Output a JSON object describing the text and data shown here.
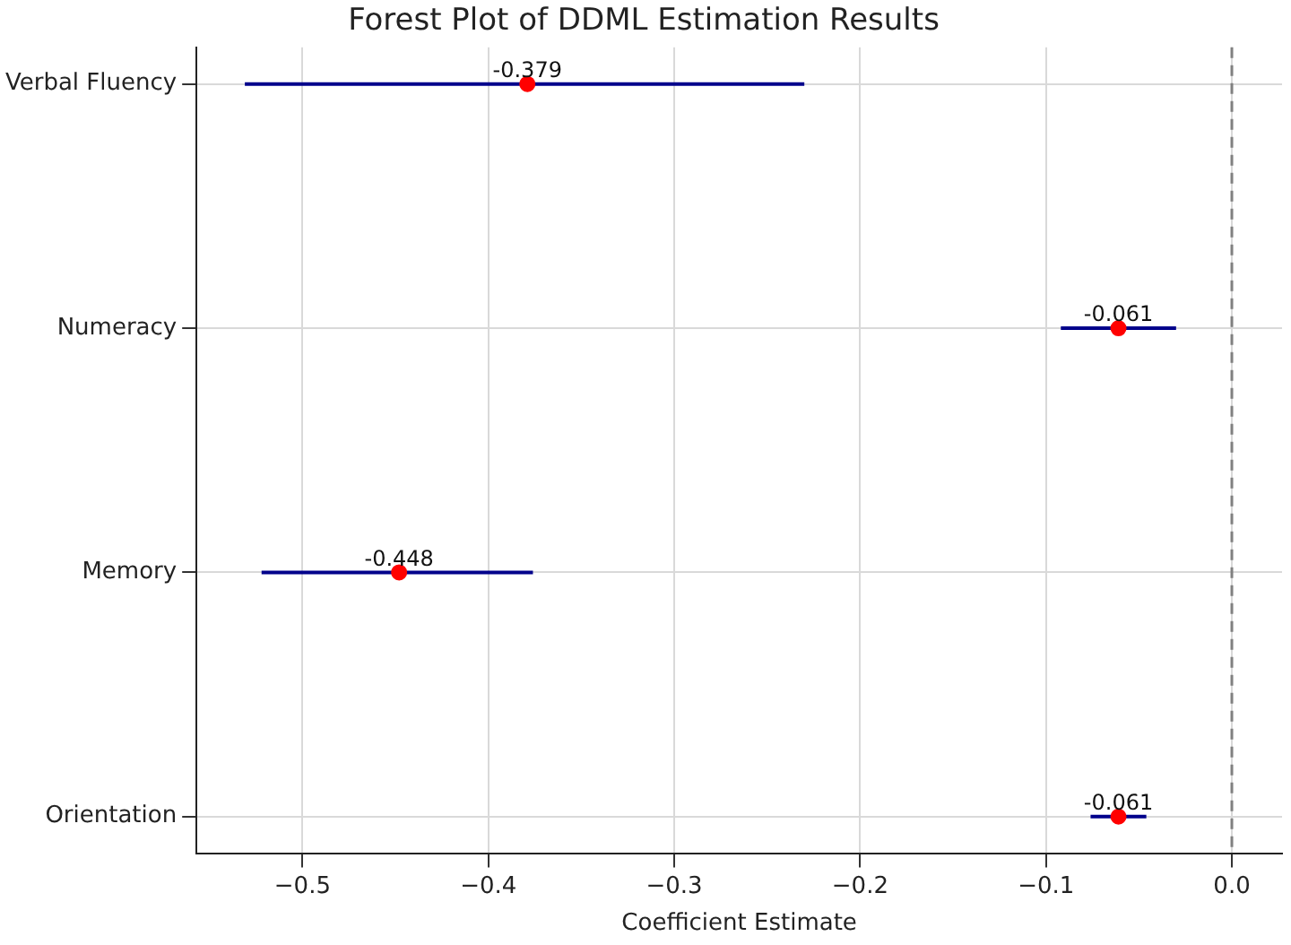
{
  "chart_data": {
    "type": "scatter",
    "title": "Forest Plot of DDML Estimation Results",
    "xlabel": "Coefficient Estimate",
    "orientation": "horizontal",
    "categories": [
      "Verbal Fluency",
      "Numeracy",
      "Memory",
      "Orientation"
    ],
    "values": [
      -0.379,
      -0.061,
      -0.448,
      -0.061
    ],
    "errors": [
      [
        -0.531,
        -0.23
      ],
      [
        -0.092,
        -0.03
      ],
      [
        -0.522,
        -0.376
      ],
      [
        -0.076,
        -0.046
      ]
    ],
    "color": "#ff0000",
    "xlim": [
      -0.557,
      0.027
    ],
    "xticks": [
      {
        "value": -0.5,
        "label": "−0.5"
      },
      {
        "value": -0.4,
        "label": "−0.4"
      },
      {
        "value": -0.3,
        "label": "−0.3"
      },
      {
        "value": -0.2,
        "label": "−0.2"
      },
      {
        "value": -0.1,
        "label": "−0.1"
      },
      {
        "value": 0,
        "label": "0.0"
      }
    ],
    "ref_lines": [
      {
        "axis": "x",
        "value": 0,
        "color": "#808080",
        "line_style": "dashed"
      }
    ],
    "grid": true,
    "marker": "circle",
    "data_labels": true,
    "legend": false
  }
}
